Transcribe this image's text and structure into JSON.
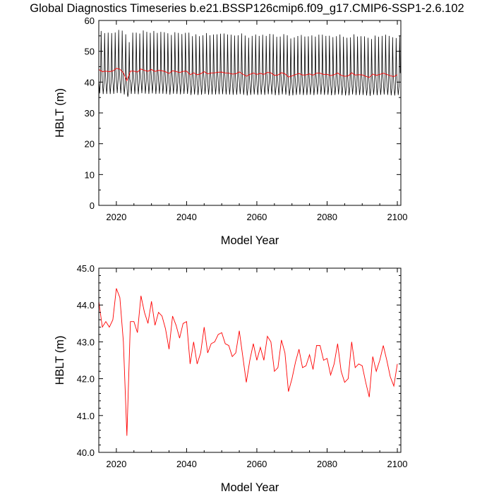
{
  "title": "Global Diagnostics Timeseries b.e21.BSSP126cmip6.f09_g17.CMIP6-SSP1-2.6.102",
  "colors": {
    "monthly": "#000000",
    "annual": "#ff0000"
  },
  "chart_data": [
    {
      "type": "line",
      "xlabel": "Model Year",
      "ylabel": "HBLT (m)",
      "xlim": [
        2015,
        2101
      ],
      "ylim": [
        0,
        60
      ],
      "xticks": [
        2020,
        2040,
        2060,
        2080,
        2100
      ],
      "yticks": [
        0,
        10,
        20,
        30,
        40,
        50,
        60
      ],
      "ytick_labels": [
        "0",
        "10",
        "20",
        "30",
        "40",
        "50",
        "60"
      ],
      "monthly_cycle": {
        "max": 55.5,
        "min": 36.0,
        "mid": 39.5,
        "start_value": 0,
        "start_year": 2015
      },
      "series": [
        {
          "key": "monthly",
          "color": "#000000"
        },
        {
          "key": "annual",
          "color": "#ff0000"
        }
      ]
    },
    {
      "type": "line",
      "xlabel": "Model Year",
      "ylabel": "HBLT (m)",
      "xlim": [
        2015,
        2101
      ],
      "ylim": [
        40.0,
        45.0
      ],
      "xticks": [
        2020,
        2040,
        2060,
        2080,
        2100
      ],
      "yticks": [
        40,
        41,
        42,
        43,
        44,
        45
      ],
      "ytick_labels": [
        "40.0",
        "41.0",
        "42.0",
        "43.0",
        "44.0",
        "45.0"
      ],
      "series": [
        {
          "key": "annual",
          "color": "#ff0000",
          "x": [
            2015,
            2016,
            2017,
            2018,
            2019,
            2020,
            2021,
            2022,
            2023,
            2024,
            2025,
            2026,
            2027,
            2028,
            2029,
            2030,
            2031,
            2032,
            2033,
            2034,
            2035,
            2036,
            2037,
            2038,
            2039,
            2040,
            2041,
            2042,
            2043,
            2044,
            2045,
            2046,
            2047,
            2048,
            2049,
            2050,
            2051,
            2052,
            2053,
            2054,
            2055,
            2056,
            2057,
            2058,
            2059,
            2060,
            2061,
            2062,
            2063,
            2064,
            2065,
            2066,
            2067,
            2068,
            2069,
            2070,
            2071,
            2072,
            2073,
            2074,
            2075,
            2076,
            2077,
            2078,
            2079,
            2080,
            2081,
            2082,
            2083,
            2084,
            2085,
            2086,
            2087,
            2088,
            2089,
            2090,
            2091,
            2092,
            2093,
            2094,
            2095,
            2096,
            2097,
            2098,
            2099,
            2100
          ],
          "values": [
            44.1,
            43.4,
            43.55,
            43.4,
            43.6,
            44.45,
            44.2,
            43.0,
            40.45,
            43.55,
            43.55,
            43.25,
            44.25,
            43.8,
            43.5,
            44.1,
            43.45,
            43.8,
            43.7,
            43.35,
            42.8,
            43.7,
            43.45,
            43.1,
            43.5,
            43.55,
            42.4,
            43.0,
            42.4,
            42.7,
            43.4,
            42.7,
            42.95,
            43.0,
            43.2,
            43.25,
            42.95,
            42.9,
            42.6,
            42.7,
            43.3,
            42.6,
            41.9,
            42.5,
            42.95,
            42.5,
            42.85,
            42.5,
            43.15,
            43.0,
            42.2,
            42.3,
            43.05,
            42.7,
            41.65,
            42.0,
            42.45,
            42.8,
            42.3,
            42.35,
            42.65,
            42.25,
            42.9,
            42.9,
            42.5,
            42.55,
            42.1,
            42.4,
            42.95,
            42.2,
            41.9,
            42.0,
            43.0,
            42.3,
            42.4,
            42.35,
            41.9,
            41.5,
            42.6,
            42.2,
            42.5,
            42.9,
            42.5,
            42.05,
            41.8,
            42.4
          ]
        }
      ]
    }
  ]
}
